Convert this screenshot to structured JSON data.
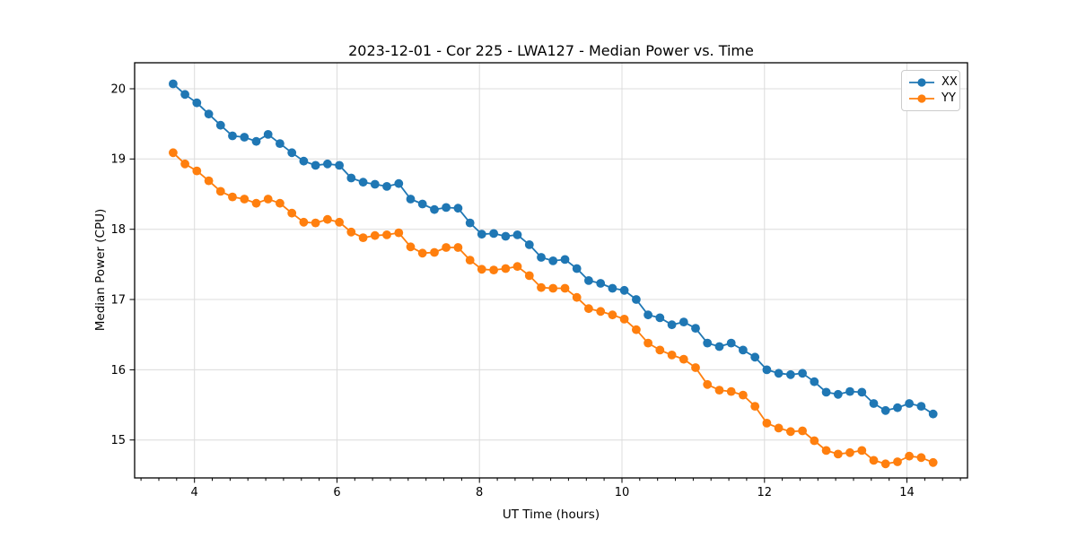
{
  "chart_data": {
    "type": "line",
    "title": "2023-12-01 - Cor 225 - LWA127 - Median Power vs. Time",
    "xlabel": "UT Time (hours)",
    "ylabel": "Median Power (CPU)",
    "xlim": [
      3.16,
      14.85
    ],
    "ylim": [
      14.46,
      20.37
    ],
    "x_ticks": [
      4,
      6,
      8,
      10,
      12,
      14
    ],
    "x_minor_tick_step": 0.25,
    "y_ticks": [
      15,
      16,
      17,
      18,
      19,
      20
    ],
    "grid": true,
    "legend": {
      "position": "upper right",
      "entries": [
        "XX",
        "YY"
      ]
    },
    "colors": {
      "grid": "#dcdcdc",
      "spine": "#000000",
      "text": "#000000",
      "background": "#ffffff"
    },
    "x": [
      3.7,
      3.867,
      4.033,
      4.2,
      4.367,
      4.533,
      4.7,
      4.867,
      5.033,
      5.2,
      5.367,
      5.533,
      5.7,
      5.867,
      6.033,
      6.2,
      6.367,
      6.533,
      6.7,
      6.867,
      7.033,
      7.2,
      7.367,
      7.533,
      7.7,
      7.867,
      8.033,
      8.2,
      8.367,
      8.533,
      8.7,
      8.867,
      9.033,
      9.2,
      9.367,
      9.533,
      9.7,
      9.867,
      10.033,
      10.2,
      10.367,
      10.533,
      10.7,
      10.867,
      11.033,
      11.2,
      11.367,
      11.533,
      11.7,
      11.867,
      12.033,
      12.2,
      12.367,
      12.533,
      12.7,
      12.867,
      13.033,
      13.2,
      13.367,
      13.533,
      13.7,
      13.867,
      14.033,
      14.2,
      14.367
    ],
    "series": [
      {
        "name": "XX",
        "color": "#1f77b4",
        "marker": "circle",
        "values": [
          20.07,
          19.92,
          19.8,
          19.64,
          19.48,
          19.33,
          19.31,
          19.25,
          19.35,
          19.22,
          19.09,
          18.97,
          18.91,
          18.93,
          18.91,
          18.73,
          18.67,
          18.64,
          18.61,
          18.65,
          18.43,
          18.36,
          18.28,
          18.31,
          18.3,
          18.09,
          17.93,
          17.94,
          17.9,
          17.92,
          17.78,
          17.6,
          17.55,
          17.57,
          17.44,
          17.27,
          17.23,
          17.16,
          17.13,
          17.0,
          16.78,
          16.74,
          16.64,
          16.68,
          16.59,
          16.38,
          16.33,
          16.38,
          16.28,
          16.18,
          16.0,
          15.95,
          15.93,
          15.95,
          15.83,
          15.68,
          15.65,
          15.69,
          15.68,
          15.52,
          15.42,
          15.46,
          15.52,
          15.48,
          15.37
        ]
      },
      {
        "name": "YY",
        "color": "#ff7f0e",
        "marker": "circle",
        "values": [
          19.09,
          18.93,
          18.83,
          18.69,
          18.54,
          18.46,
          18.43,
          18.37,
          18.43,
          18.37,
          18.23,
          18.1,
          18.09,
          18.14,
          18.1,
          17.96,
          17.88,
          17.91,
          17.92,
          17.95,
          17.75,
          17.66,
          17.67,
          17.74,
          17.74,
          17.56,
          17.43,
          17.42,
          17.44,
          17.47,
          17.34,
          17.17,
          17.16,
          17.16,
          17.03,
          16.87,
          16.83,
          16.78,
          16.72,
          16.57,
          16.38,
          16.28,
          16.21,
          16.15,
          16.03,
          15.79,
          15.71,
          15.69,
          15.64,
          15.48,
          15.24,
          15.17,
          15.12,
          15.13,
          14.99,
          14.85,
          14.8,
          14.82,
          14.85,
          14.71,
          14.66,
          14.69,
          14.77,
          14.75,
          14.68
        ]
      }
    ]
  }
}
